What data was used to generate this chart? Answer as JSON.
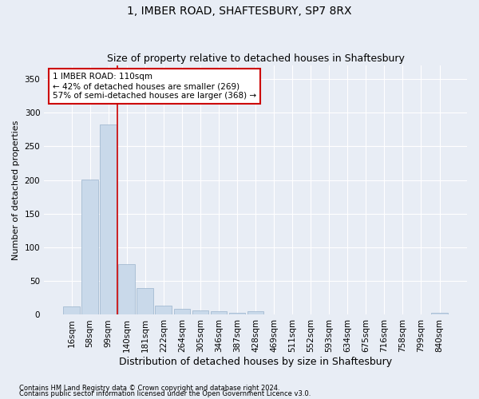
{
  "title": "1, IMBER ROAD, SHAFTESBURY, SP7 8RX",
  "subtitle": "Size of property relative to detached houses in Shaftesbury",
  "xlabel": "Distribution of detached houses by size in Shaftesbury",
  "ylabel": "Number of detached properties",
  "footnote1": "Contains HM Land Registry data © Crown copyright and database right 2024.",
  "footnote2": "Contains public sector information licensed under the Open Government Licence v3.0.",
  "bar_labels": [
    "16sqm",
    "58sqm",
    "99sqm",
    "140sqm",
    "181sqm",
    "222sqm",
    "264sqm",
    "305sqm",
    "346sqm",
    "387sqm",
    "428sqm",
    "469sqm",
    "511sqm",
    "552sqm",
    "593sqm",
    "634sqm",
    "675sqm",
    "716sqm",
    "758sqm",
    "799sqm",
    "840sqm"
  ],
  "bar_values": [
    12,
    201,
    283,
    75,
    40,
    13,
    9,
    6,
    5,
    3,
    5,
    0,
    0,
    0,
    0,
    0,
    0,
    0,
    0,
    0,
    3
  ],
  "bar_color": "#c9d9ea",
  "bar_edgecolor": "#9ab4cc",
  "vline_color": "#cc0000",
  "annotation_text": "1 IMBER ROAD: 110sqm\n← 42% of detached houses are smaller (269)\n57% of semi-detached houses are larger (368) →",
  "annotation_box_facecolor": "#ffffff",
  "annotation_box_edgecolor": "#cc0000",
  "ylim": [
    0,
    370
  ],
  "yticks": [
    0,
    50,
    100,
    150,
    200,
    250,
    300,
    350
  ],
  "fig_facecolor": "#e8edf5",
  "plot_facecolor": "#e8edf5",
  "title_fontsize": 10,
  "subtitle_fontsize": 9,
  "xlabel_fontsize": 9,
  "ylabel_fontsize": 8,
  "tick_fontsize": 7.5,
  "annotation_fontsize": 7.5,
  "footnote_fontsize": 6
}
